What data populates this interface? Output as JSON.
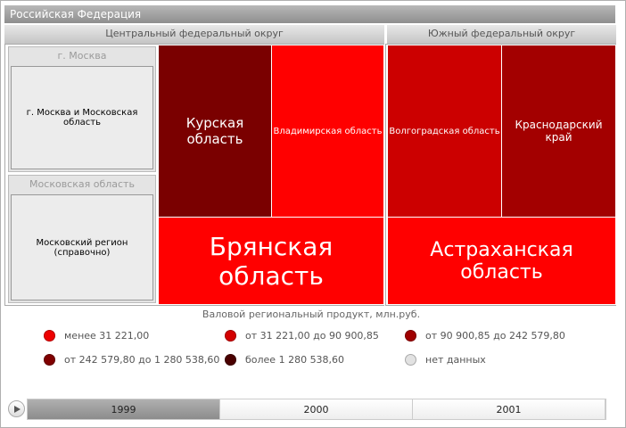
{
  "header": {
    "title": "Российская Федерация"
  },
  "districts": [
    {
      "title": "Центральный федеральный округ",
      "panels": [
        {
          "title": "г. Москва",
          "item": "г. Москва и Московская область"
        },
        {
          "title": "Московская область",
          "item": "Московский регион (справочно)"
        }
      ],
      "regions": [
        {
          "label": "Курская область",
          "color": "#7a0000"
        },
        {
          "label": "Владимирская область",
          "color": "#ff0000"
        },
        {
          "label": "Брянская область",
          "color": "#ff0000"
        }
      ]
    },
    {
      "title": "Южный федеральный округ",
      "regions": [
        {
          "label": "Волгоградская область",
          "color": "#cc0000"
        },
        {
          "label": "Краснодарский край",
          "color": "#a30000"
        },
        {
          "label": "Астраханская область",
          "color": "#ff0000"
        }
      ]
    }
  ],
  "legend": {
    "title": "Валовой региональный продукт, млн.руб.",
    "items": [
      {
        "label": "менее 31 221,00",
        "color": "#ee0000"
      },
      {
        "label": "от 31 221,00 до 90 900,85",
        "color": "#d40000"
      },
      {
        "label": "от 90 900,85 до 242 579,80",
        "color": "#a00000"
      },
      {
        "label": "от 242 579,80 до 1 280 538,60",
        "color": "#800000"
      },
      {
        "label": "более 1 280 538,60",
        "color": "#4a0000"
      },
      {
        "label": "нет данных",
        "color": "#e2e2e2"
      }
    ]
  },
  "timeline": {
    "years": [
      "1999",
      "2000",
      "2001"
    ],
    "selected": 0
  }
}
